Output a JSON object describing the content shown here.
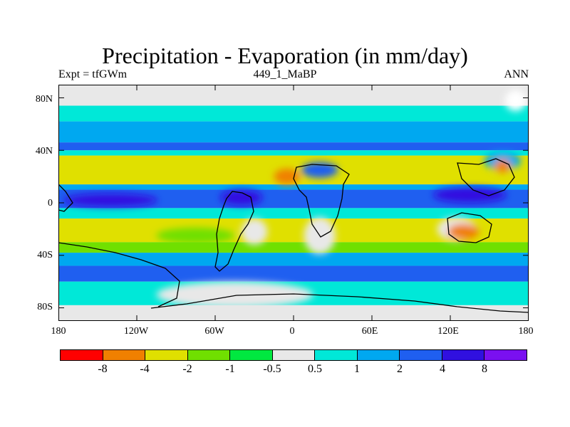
{
  "title": "Precipitation - Evaporation (in mm/day)",
  "subtitle_left": "Expt = tfGWm",
  "subtitle_center": "449_1_MaBP",
  "subtitle_right": "ANN",
  "map": {
    "projection": "cylindrical equidistant",
    "lon_range": [
      -180,
      180
    ],
    "lat_range": [
      -90,
      90
    ],
    "lat_ticks": [
      {
        "value": 80,
        "label": "80N"
      },
      {
        "value": 40,
        "label": "40N"
      },
      {
        "value": 0,
        "label": "0"
      },
      {
        "value": -40,
        "label": "40S"
      },
      {
        "value": -80,
        "label": "80S"
      }
    ],
    "lon_ticks": [
      {
        "value": -180,
        "label": "180"
      },
      {
        "value": -120,
        "label": "120W"
      },
      {
        "value": -60,
        "label": "60W"
      },
      {
        "value": 0,
        "label": "0"
      },
      {
        "value": 60,
        "label": "60E"
      },
      {
        "value": 120,
        "label": "120E"
      },
      {
        "value": 180,
        "label": "180"
      }
    ],
    "background_color": "#e8e8e8",
    "zonal_bands": [
      {
        "lat_from": 90,
        "lat_to": 74,
        "color": "#e8e8e8"
      },
      {
        "lat_from": 74,
        "lat_to": 62,
        "color": "#00e8d8"
      },
      {
        "lat_from": 62,
        "lat_to": 46,
        "color": "#00a8f0"
      },
      {
        "lat_from": 46,
        "lat_to": 40,
        "color": "#1f5ff0"
      },
      {
        "lat_from": 40,
        "lat_to": 36,
        "color": "#00e8d8"
      },
      {
        "lat_from": 36,
        "lat_to": 14,
        "color": "#e0e000"
      },
      {
        "lat_from": 14,
        "lat_to": 10,
        "color": "#00a8f0"
      },
      {
        "lat_from": 10,
        "lat_to": -4,
        "color": "#1f5ff0"
      },
      {
        "lat_from": -4,
        "lat_to": -12,
        "color": "#00e8d8"
      },
      {
        "lat_from": -12,
        "lat_to": -30,
        "color": "#e0e000"
      },
      {
        "lat_from": -30,
        "lat_to": -38,
        "color": "#70e000"
      },
      {
        "lat_from": -38,
        "lat_to": -48,
        "color": "#00a8f0"
      },
      {
        "lat_from": -48,
        "lat_to": -60,
        "color": "#1f5ff0"
      },
      {
        "lat_from": -60,
        "lat_to": -78,
        "color": "#00e8d8"
      },
      {
        "lat_from": -78,
        "lat_to": -90,
        "color": "#e8e8e8"
      }
    ],
    "patches": [
      {
        "lon": -140,
        "lat": 2,
        "rlon": 36,
        "rlat": 5,
        "color": "#3010e0"
      },
      {
        "lon": -40,
        "lat": 4,
        "rlon": 16,
        "rlat": 6,
        "color": "#3010e0"
      },
      {
        "lon": 135,
        "lat": 6,
        "rlon": 28,
        "rlat": 6,
        "color": "#3010e0"
      },
      {
        "lon": 20,
        "lat": 25,
        "rlon": 14,
        "rlat": 6,
        "color": "#1f5ff0"
      },
      {
        "lon": 160,
        "lat": 32,
        "rlon": 14,
        "rlat": 7,
        "color": "#00a8f0"
      },
      {
        "lon": -75,
        "lat": -25,
        "rlon": 30,
        "rlat": 6,
        "color": "#70e000"
      },
      {
        "lon": -30,
        "lat": -22,
        "rlon": 10,
        "rlat": 10,
        "color": "#e8e8e8"
      },
      {
        "lon": 20,
        "lat": -25,
        "rlon": 12,
        "rlat": 14,
        "color": "#e8e8e8"
      },
      {
        "lon": 125,
        "lat": -20,
        "rlon": 15,
        "rlat": 9,
        "color": "#e8e8e8"
      },
      {
        "lon": -5,
        "lat": 20,
        "rlon": 10,
        "rlat": 6,
        "color": "#f08000"
      },
      {
        "lon": 130,
        "lat": -22,
        "rlon": 12,
        "rlat": 6,
        "color": "#f08000"
      },
      {
        "lon": 160,
        "lat": 28,
        "rlon": 6,
        "rlat": 5,
        "color": "#f08000"
      },
      {
        "lon": -45,
        "lat": -70,
        "rlon": 60,
        "rlat": 10,
        "color": "#e8e8e8"
      },
      {
        "lon": 170,
        "lat": 78,
        "rlon": 8,
        "rlat": 8,
        "color": "#ffffff"
      }
    ]
  },
  "colorbar": {
    "colors": [
      "#ff0000",
      "#f08000",
      "#e0e000",
      "#70e000",
      "#00e840",
      "#e8e8e8",
      "#00e8d8",
      "#00a8f0",
      "#1f5ff0",
      "#3010e0",
      "#7a10f0"
    ],
    "labels": [
      "-8",
      "-4",
      "-2",
      "-1",
      "-0.5",
      "0.5",
      "1",
      "2",
      "4",
      "8"
    ]
  }
}
